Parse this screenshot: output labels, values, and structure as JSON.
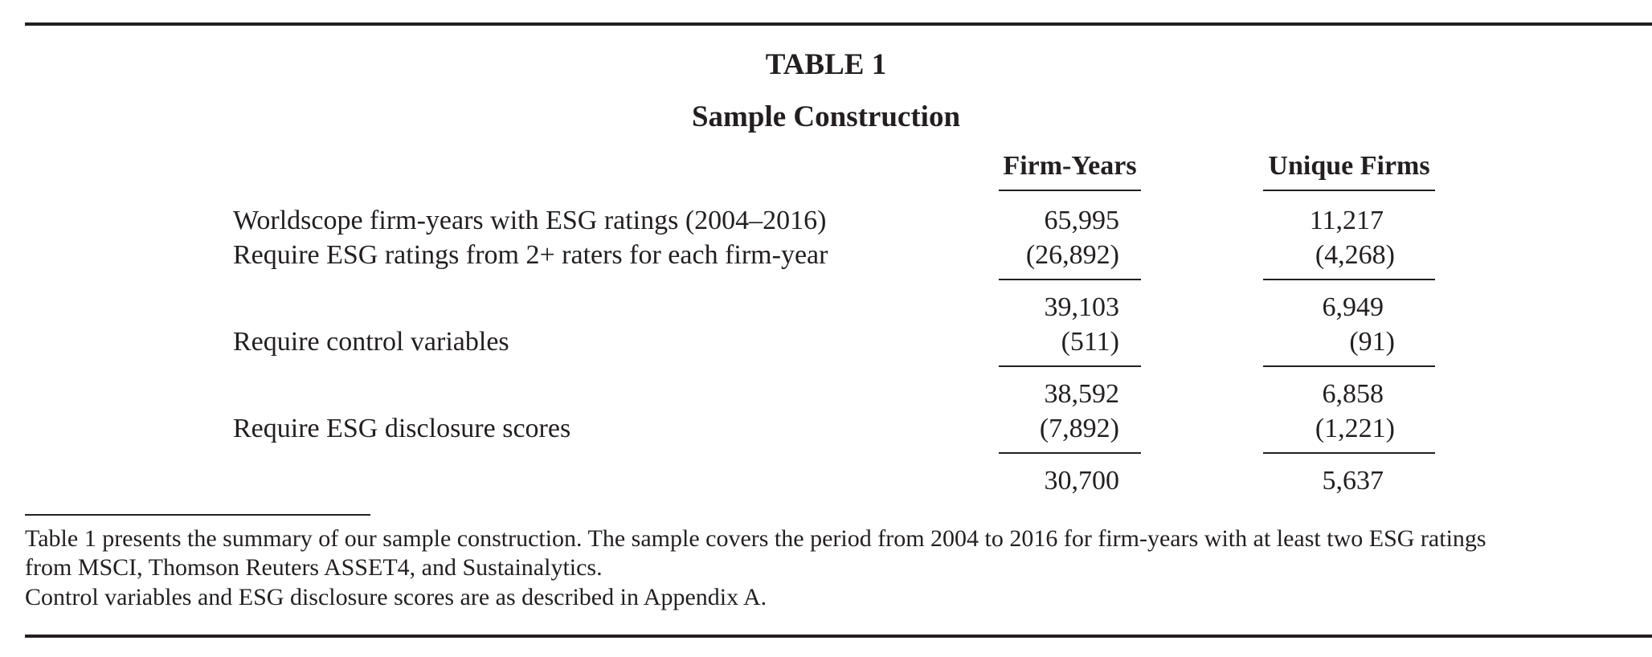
{
  "table": {
    "title": "TABLE 1",
    "subtitle": "Sample Construction",
    "columns": [
      "Firm-Years",
      "Unique Firms"
    ],
    "rows": [
      {
        "label": "Worldscope firm-years with ESG ratings (2004–2016)",
        "firm_years": "65,995",
        "unique_firms": "11,217"
      },
      {
        "label": "Require ESG ratings from 2+ raters for each firm-year",
        "firm_years": "(26,892)",
        "unique_firms": "(4,268)"
      },
      {
        "label": "",
        "firm_years": "39,103",
        "unique_firms": "6,949"
      },
      {
        "label": "Require control variables",
        "firm_years": "(511)",
        "unique_firms": "(91)"
      },
      {
        "label": "",
        "firm_years": "38,592",
        "unique_firms": "6,858"
      },
      {
        "label": "Require ESG disclosure scores",
        "firm_years": "(7,892)",
        "unique_firms": "(1,221)"
      },
      {
        "label": "",
        "firm_years": "30,700",
        "unique_firms": "5,637"
      }
    ]
  },
  "notes": {
    "line1": "Table 1 presents the summary of our sample construction. The sample covers the period from 2004 to 2016 for firm-years with at least two ESG ratings",
    "line2": "from MSCI, Thomson Reuters ASSET4, and Sustainalytics.",
    "line3": "Control variables and ESG disclosure scores are as described in Appendix A."
  }
}
